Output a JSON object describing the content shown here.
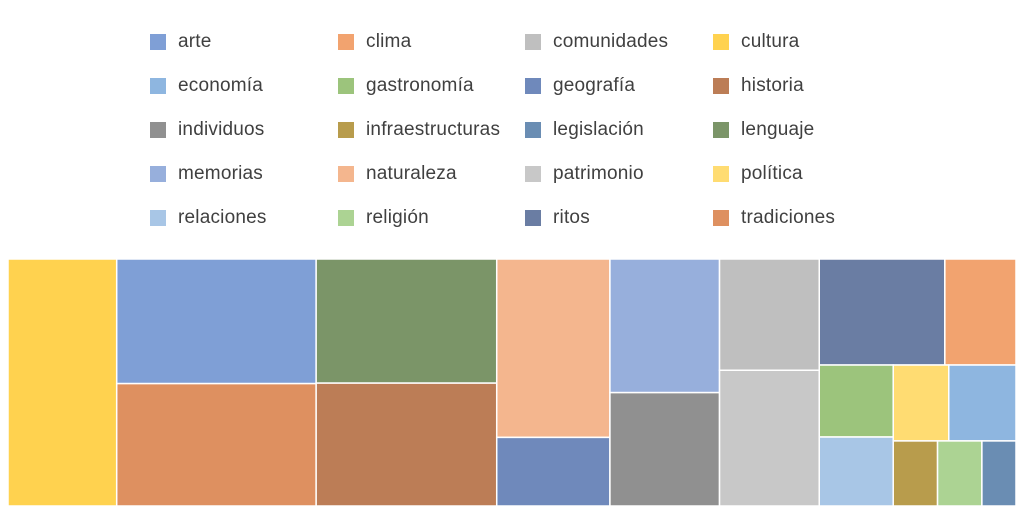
{
  "chart_data": {
    "type": "treemap",
    "legend_placement": "top",
    "items": [
      {
        "name": "arte",
        "value": 11.2,
        "color": "#7f9fd6"
      },
      {
        "name": "clima",
        "value": 3.4,
        "color": "#f2a36f"
      },
      {
        "name": "comunidades",
        "value": 5.0,
        "color": "#bfbfbf"
      },
      {
        "name": "cultura",
        "value": 12.1,
        "color": "#ffd24f"
      },
      {
        "name": "economía",
        "value": 2.3,
        "color": "#8eb6e0"
      },
      {
        "name": "gastronomía",
        "value": 2.4,
        "color": "#9cc47c"
      },
      {
        "name": "geografía",
        "value": 3.5,
        "color": "#6f89bb"
      },
      {
        "name": "historia",
        "value": 10.0,
        "color": "#bc7d56"
      },
      {
        "name": "individuos",
        "value": 5.6,
        "color": "#909090"
      },
      {
        "name": "infraestructuras",
        "value": 1.3,
        "color": "#b89c4c"
      },
      {
        "name": "legislación",
        "value": 1.0,
        "color": "#6a8db3"
      },
      {
        "name": "lenguaje",
        "value": 10.1,
        "color": "#7b9568"
      },
      {
        "name": "memorias",
        "value": 6.6,
        "color": "#97afdc"
      },
      {
        "name": "naturaleza",
        "value": 9.1,
        "color": "#f4b68e"
      },
      {
        "name": "patrimonio",
        "value": 6.1,
        "color": "#c8c8c8"
      },
      {
        "name": "política",
        "value": 1.9,
        "color": "#ffdc72"
      },
      {
        "name": "relaciones",
        "value": 2.3,
        "color": "#a8c6e6"
      },
      {
        "name": "religión",
        "value": 1.3,
        "color": "#acd393"
      },
      {
        "name": "ritos",
        "value": 6.0,
        "color": "#6a7da3"
      },
      {
        "name": "tradiciones",
        "value": 11.0,
        "color": "#de9060"
      }
    ]
  }
}
